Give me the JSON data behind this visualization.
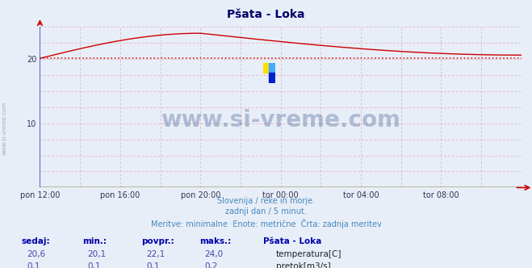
{
  "title": "Pšata - Loka",
  "bg_color": "#e8eef8",
  "plot_bg_color": "#e8eef8",
  "grid_color_h": "#c8c8d8",
  "grid_color_v": "#c8c8d8",
  "left_spine_color": "#4444cc",
  "bottom_spine_color": "#cc0000",
  "arrow_color": "#cc0000",
  "ylabel": "",
  "xlabel": "",
  "xlim": [
    0,
    288
  ],
  "ylim": [
    0,
    25
  ],
  "ytick_vals": [
    10,
    20
  ],
  "xtick_labels": [
    "pon 12:00",
    "pon 16:00",
    "pon 20:00",
    "tor 00:00",
    "tor 04:00",
    "tor 08:00"
  ],
  "xtick_positions": [
    0,
    48,
    96,
    144,
    192,
    240
  ],
  "temp_min": 20.1,
  "temp_max": 24.0,
  "temp_mean": 22.1,
  "temp_start": 20.1,
  "temp_end": 20.6,
  "temp_peak": 24.0,
  "temp_peak_x": 96,
  "temp_last": 20.6,
  "flow_value": 0.1,
  "temp_color": "#cc0000",
  "flow_color": "#00aa00",
  "dotted_color": "#dd2222",
  "dotted_mean": 20.1,
  "watermark_text": "www.si-vreme.com",
  "watermark_color": "#1a3a7a",
  "footnote_color": "#4488bb",
  "label_color": "#0000aa",
  "value_color": "#4444aa",
  "subtitle_lines": [
    "Slovenija / reke in morje.",
    "zadnji dan / 5 minut.",
    "Meritve: minimalne  Enote: metrične  Črta: zadnja meritev"
  ],
  "table_headers": [
    "sedaj:",
    "min.:",
    "povpr.:",
    "maks.:",
    "Pšata - Loka"
  ],
  "table_row1": [
    "20,6",
    "20,1",
    "22,1",
    "24,0"
  ],
  "table_row2": [
    "0,1",
    "0,1",
    "0,1",
    "0,2"
  ],
  "legend_labels": [
    "temperatura[C]",
    "pretok[m3/s]"
  ],
  "logo_colors": [
    "#ffdd00",
    "#44aaff",
    "#0022cc"
  ]
}
